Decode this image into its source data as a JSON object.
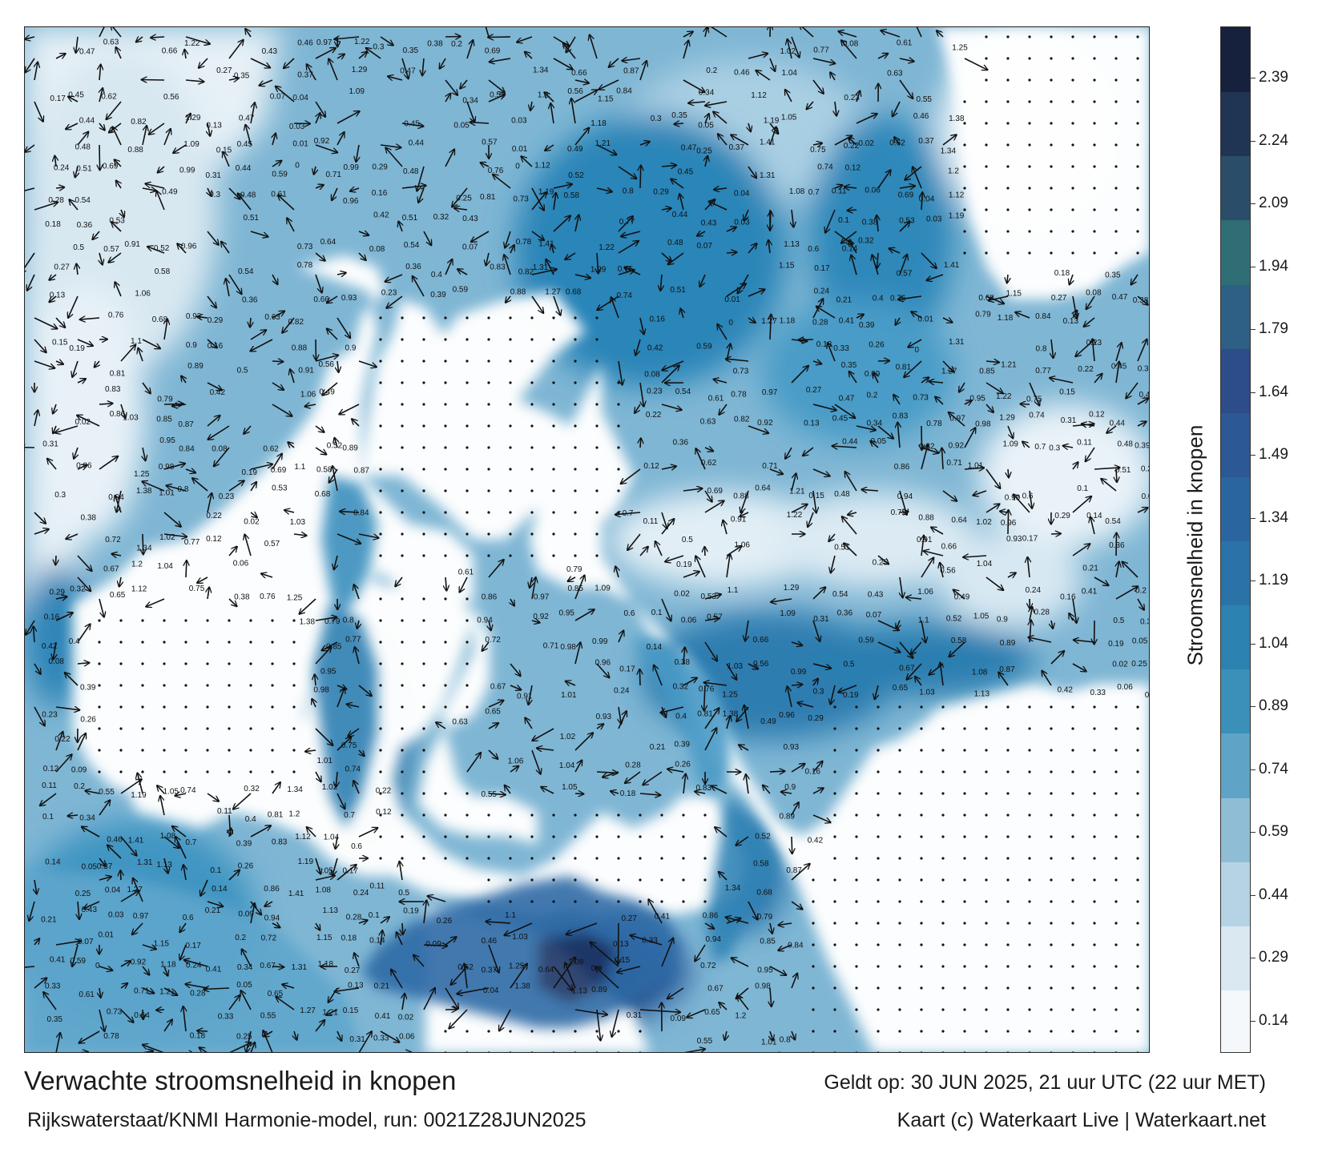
{
  "map": {
    "title": "Verwachte stroomsnelheid in knopen",
    "valid_time": "Geldt op: 30 JUN 2025, 21 uur UTC (22 uur MET)",
    "model_run": "Rijkswaterstaat/KNMI Harmonie-model, run: 0021Z28JUN2025",
    "copyright": "Kaart (c) Waterkaart Live | Waterkaart.net",
    "legend": {
      "title": "Stroomsnelheid in knopen",
      "ticks": [
        "2.39",
        "2.24",
        "2.09",
        "1.94",
        "1.79",
        "1.64",
        "1.49",
        "1.34",
        "1.19",
        "1.04",
        "0.89",
        "0.74",
        "0.59",
        "0.44",
        "0.29",
        "0.14"
      ],
      "colors": [
        "#f4f8fb",
        "#d9e8f1",
        "#b5d3e4",
        "#8fbdd6",
        "#5fa3c6",
        "#3a90b8",
        "#2c82b0",
        "#2a73a8",
        "#2b65a0",
        "#2c5895",
        "#2c4c8a",
        "#2e5f84",
        "#2f6e74",
        "#2a4e6a",
        "#1f3553",
        "#16213d"
      ]
    },
    "colors": {
      "land": "#ffffff",
      "sea_light": "#e4eff6",
      "sea_mid": "#5aa3c8",
      "sea_dark": "#2c7fb0",
      "sea_strong": "#2a5c9a"
    },
    "sample_labels": [
      "0.17",
      "0.24",
      "0.28",
      "0.18",
      "0.27",
      "0.13",
      "0.15",
      "0.31",
      "0.3",
      "0.29",
      "0.16",
      "0.42",
      "0.08",
      "0.23",
      "0.22",
      "0.12",
      "0.11",
      "0.1",
      "0.14",
      "0.21",
      "0.41",
      "0.33",
      "0.35",
      "0.47",
      "0.45",
      "0.44",
      "0.48",
      "0.51",
      "0.54",
      "0.36",
      "0.5",
      "0.19",
      "0.02",
      "0.06",
      "0.38",
      "0.32",
      "0.4",
      "0.39",
      "0.26",
      "0.09",
      "0.2",
      "0.34",
      "0.05",
      "0.25",
      "0.43",
      "0.07",
      "0.59",
      "0.61",
      "0.63",
      "0.62",
      "0.69",
      "0.53",
      "0.57",
      "0.76",
      "0.81",
      "0.83",
      "0.86",
      "0.94",
      "0.72",
      "0.67",
      "0.65",
      "0.55",
      "0.46",
      "0.37",
      "0.04",
      "0.03",
      "0.01",
      "0",
      "0.73",
      "0.78",
      "0.82",
      "0.88",
      "0.91",
      "1.06",
      "1.1",
      "1.03",
      "1.25",
      "1.38",
      "1.34",
      "1.2",
      "1.12",
      "1.19",
      "1.41",
      "1.31",
      "1.27",
      "0.97",
      "0.92",
      "0.71",
      "0.64",
      "0.66",
      "0.56",
      "0.49",
      "0.52",
      "0.58",
      "0.68",
      "0.79",
      "0.85",
      "0.95",
      "0.98",
      "1.01",
      "1.02",
      "1.04",
      "1.05",
      "1.08",
      "1.13",
      "1.15",
      "1.18",
      "1.21",
      "1.22",
      "1.29",
      "1.09",
      "0.99",
      "0.96",
      "0.93",
      "0.9",
      "0.89",
      "0.87",
      "0.84",
      "0.8",
      "0.77",
      "0.75",
      "0.74",
      "0.7",
      "0.6"
    ]
  }
}
